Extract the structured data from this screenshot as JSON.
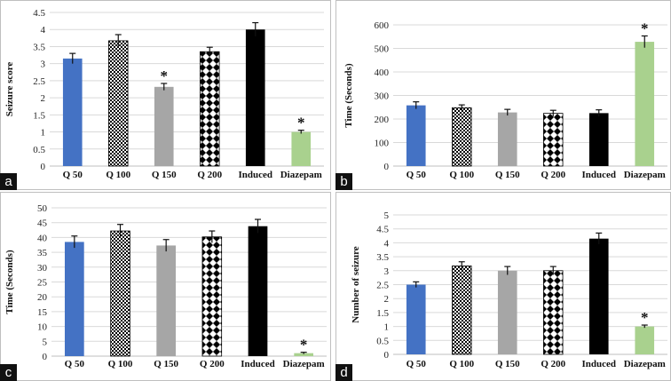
{
  "figure": {
    "panels": [
      "a",
      "b",
      "c",
      "d"
    ]
  },
  "colors": {
    "q50": "#4472c4",
    "q150": "#a6a6a6",
    "induced": "#000000",
    "diazepam": "#a9d18e",
    "pattern_ink": "#000000",
    "gridline": "#d9d9d9",
    "axis": "#bfbfbf",
    "label_bg": "#111111"
  },
  "chart_data": [
    {
      "panel": "a",
      "type": "bar",
      "title": "",
      "ylabel": "Seizure score",
      "xlabel": "",
      "ylim": [
        0,
        4.5
      ],
      "yticks": [
        "0",
        "0.5",
        "1",
        "1.5",
        "2",
        "2.5",
        "3",
        "3.5",
        "4",
        "4.5"
      ],
      "categories": [
        "Q 50",
        "Q 100",
        "Q 150",
        "Q 200",
        "Induced",
        "Diazepam"
      ],
      "values": [
        3.15,
        3.67,
        2.32,
        3.35,
        4.0,
        1.0
      ],
      "errors": [
        0.15,
        0.18,
        0.1,
        0.13,
        0.2,
        0.05
      ],
      "significance": [
        "",
        "",
        "*",
        "",
        "",
        "*"
      ],
      "grid": true
    },
    {
      "panel": "b",
      "type": "bar",
      "title": "",
      "ylabel": "Time (Seconds)",
      "xlabel": "",
      "ylim": [
        0,
        600
      ],
      "yticks": [
        "0",
        "100",
        "200",
        "300",
        "400",
        "500",
        "600"
      ],
      "categories": [
        "Q 50",
        "Q 100",
        "Q 150",
        "Q 200",
        "Induced",
        "Diazepam"
      ],
      "values": [
        258,
        248,
        228,
        224,
        225,
        528
      ],
      "errors": [
        15,
        12,
        13,
        13,
        14,
        25
      ],
      "significance": [
        "",
        "",
        "",
        "",
        "",
        "*"
      ],
      "grid": true
    },
    {
      "panel": "c",
      "type": "bar",
      "title": "",
      "ylabel": "Time (Seconds)",
      "xlabel": "",
      "ylim": [
        0,
        50
      ],
      "yticks": [
        "0",
        "5",
        "10",
        "15",
        "20",
        "25",
        "30",
        "35",
        "40",
        "45",
        "50"
      ],
      "categories": [
        "Q 50",
        "Q 100",
        "Q 150",
        "Q 200",
        "Induced",
        "Diazepam"
      ],
      "values": [
        38.5,
        42.2,
        37.3,
        40.2,
        43.8,
        1.0
      ],
      "errors": [
        2.0,
        2.2,
        2.0,
        2.0,
        2.3,
        0.3
      ],
      "significance": [
        "",
        "",
        "",
        "",
        "",
        "*"
      ],
      "grid": true
    },
    {
      "panel": "d",
      "type": "bar",
      "title": "",
      "ylabel": "Number of seizure",
      "xlabel": "",
      "ylim": [
        0,
        5
      ],
      "yticks": [
        "0",
        "0.5",
        "1",
        "1.5",
        "2",
        "2.5",
        "3",
        "3.5",
        "4",
        "4.5",
        "5"
      ],
      "categories": [
        "Q 50",
        "Q 100",
        "Q 150",
        "Q 200",
        "Induced",
        "Diazepam"
      ],
      "values": [
        2.5,
        3.17,
        3.0,
        3.0,
        4.15,
        1.0
      ],
      "errors": [
        0.1,
        0.15,
        0.15,
        0.15,
        0.2,
        0.05
      ],
      "significance": [
        "",
        "",
        "",
        "",
        "",
        "*"
      ],
      "grid": true
    }
  ]
}
